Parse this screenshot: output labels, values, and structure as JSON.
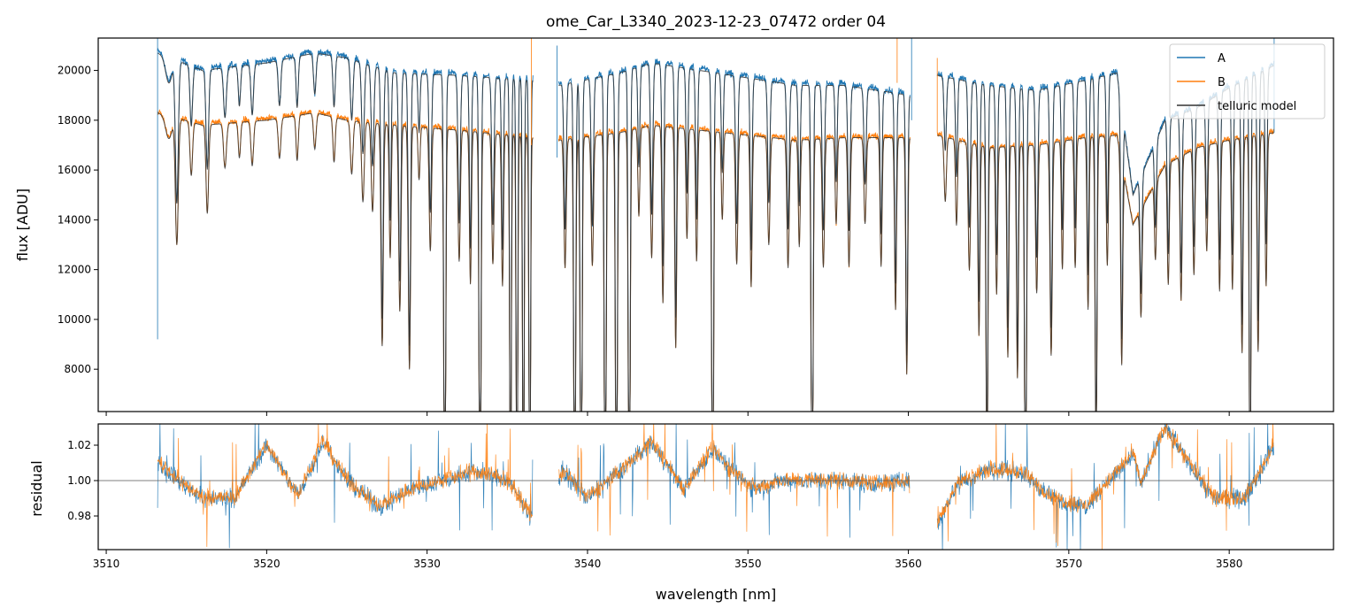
{
  "colors": {
    "A": "#1f77b4",
    "B": "#ff7f0e",
    "model": "#333333",
    "refline": "#555555"
  },
  "chart_data": [
    {
      "type": "line",
      "panel": "flux",
      "title": "ome_Car_L3340_2023-12-23_07472  order 04",
      "xlabel": "",
      "ylabel": "flux [ADU]",
      "xlim": [
        3509.5,
        3586.5
      ],
      "ylim": [
        6300,
        21300
      ],
      "xticks": [
        3510,
        3520,
        3530,
        3540,
        3550,
        3560,
        3570,
        3580
      ],
      "xtick_labels": [],
      "yticks": [
        8000,
        10000,
        12000,
        14000,
        16000,
        18000,
        20000
      ],
      "ytick_labels": [
        "8000",
        "10000",
        "12000",
        "14000",
        "16000",
        "18000",
        "20000"
      ],
      "legend": {
        "position": "top-right",
        "entries": [
          "A",
          "B",
          "telluric model"
        ]
      },
      "segments": [
        [
          3513.2,
          3536.6
        ],
        [
          3538.2,
          3560.1
        ],
        [
          3561.8,
          3582.8
        ]
      ],
      "series": [
        {
          "name": "A",
          "continuum": [
            [
              3513.2,
              20700
            ],
            [
              3516,
              20000
            ],
            [
              3520,
              20300
            ],
            [
              3523,
              20700
            ],
            [
              3525,
              20500
            ],
            [
              3528,
              19900
            ],
            [
              3532,
              19800
            ],
            [
              3536.6,
              19600
            ],
            [
              3538.2,
              19400
            ],
            [
              3542,
              19900
            ],
            [
              3544,
              20300
            ],
            [
              3547,
              20000
            ],
            [
              3550,
              19700
            ],
            [
              3553,
              19400
            ],
            [
              3556,
              19400
            ],
            [
              3560.1,
              19000
            ],
            [
              3561.8,
              19800
            ],
            [
              3565,
              19400
            ],
            [
              3568,
              19200
            ],
            [
              3571,
              19600
            ],
            [
              3573,
              19900
            ],
            [
              3574,
              15000
            ],
            [
              3576,
              18000
            ],
            [
              3578,
              18500
            ],
            [
              3580,
              19300
            ],
            [
              3582.8,
              20200
            ]
          ]
        },
        {
          "name": "B",
          "continuum": [
            [
              3513.2,
              18300
            ],
            [
              3516,
              17800
            ],
            [
              3520,
              18000
            ],
            [
              3523,
              18300
            ],
            [
              3525,
              18000
            ],
            [
              3528,
              17800
            ],
            [
              3532,
              17600
            ],
            [
              3536.6,
              17300
            ],
            [
              3538.2,
              17200
            ],
            [
              3542,
              17500
            ],
            [
              3544,
              17800
            ],
            [
              3547,
              17600
            ],
            [
              3550,
              17400
            ],
            [
              3553,
              17200
            ],
            [
              3556,
              17300
            ],
            [
              3560.1,
              17300
            ],
            [
              3561.8,
              17400
            ],
            [
              3565,
              16900
            ],
            [
              3568,
              17000
            ],
            [
              3571,
              17300
            ],
            [
              3573,
              17400
            ],
            [
              3574,
              13800
            ],
            [
              3576,
              16200
            ],
            [
              3578,
              16900
            ],
            [
              3580,
              17200
            ],
            [
              3582.8,
              17500
            ]
          ]
        },
        {
          "name": "telluric model"
        }
      ],
      "absorption_lines": [
        [
          3513.9,
          0.05,
          0.2
        ],
        [
          3514.4,
          0.28,
          0.09
        ],
        [
          3515.3,
          0.12,
          0.08
        ],
        [
          3516.3,
          0.2,
          0.08
        ],
        [
          3517.4,
          0.1,
          0.09
        ],
        [
          3518.3,
          0.08,
          0.07
        ],
        [
          3519.1,
          0.1,
          0.08
        ],
        [
          3520.8,
          0.09,
          0.08
        ],
        [
          3521.9,
          0.1,
          0.07
        ],
        [
          3523.0,
          0.08,
          0.08
        ],
        [
          3524.2,
          0.1,
          0.07
        ],
        [
          3525.3,
          0.12,
          0.08
        ],
        [
          3526.0,
          0.18,
          0.08
        ],
        [
          3526.6,
          0.2,
          0.08
        ],
        [
          3527.2,
          0.5,
          0.07
        ],
        [
          3527.7,
          0.3,
          0.06
        ],
        [
          3528.3,
          0.42,
          0.07
        ],
        [
          3528.9,
          0.55,
          0.07
        ],
        [
          3529.5,
          0.12,
          0.06
        ],
        [
          3530.2,
          0.28,
          0.07
        ],
        [
          3531.1,
          0.98,
          0.06
        ],
        [
          3532.0,
          0.3,
          0.07
        ],
        [
          3532.7,
          0.35,
          0.06
        ],
        [
          3533.3,
          0.98,
          0.06
        ],
        [
          3534.1,
          0.3,
          0.07
        ],
        [
          3534.7,
          0.35,
          0.06
        ],
        [
          3535.2,
          0.95,
          0.05
        ],
        [
          3535.6,
          0.98,
          0.05
        ],
        [
          3536.0,
          0.98,
          0.05
        ],
        [
          3536.4,
          0.98,
          0.05
        ],
        [
          3538.6,
          0.3,
          0.07
        ],
        [
          3539.2,
          0.98,
          0.06
        ],
        [
          3539.6,
          0.98,
          0.06
        ],
        [
          3540.3,
          0.3,
          0.07
        ],
        [
          3541.1,
          0.98,
          0.06
        ],
        [
          3541.8,
          0.98,
          0.06
        ],
        [
          3542.6,
          0.98,
          0.06
        ],
        [
          3543.2,
          0.2,
          0.06
        ],
        [
          3544.0,
          0.3,
          0.07
        ],
        [
          3544.7,
          0.4,
          0.06
        ],
        [
          3545.5,
          0.5,
          0.06
        ],
        [
          3546.2,
          0.25,
          0.06
        ],
        [
          3546.8,
          0.3,
          0.06
        ],
        [
          3547.8,
          0.98,
          0.06
        ],
        [
          3548.4,
          0.2,
          0.06
        ],
        [
          3549.3,
          0.3,
          0.07
        ],
        [
          3550.2,
          0.35,
          0.06
        ],
        [
          3551.3,
          0.25,
          0.07
        ],
        [
          3552.5,
          0.3,
          0.07
        ],
        [
          3553.2,
          0.25,
          0.06
        ],
        [
          3554.0,
          0.98,
          0.06
        ],
        [
          3554.7,
          0.3,
          0.07
        ],
        [
          3555.5,
          0.2,
          0.06
        ],
        [
          3556.3,
          0.3,
          0.07
        ],
        [
          3557.3,
          0.2,
          0.07
        ],
        [
          3558.3,
          0.3,
          0.06
        ],
        [
          3559.2,
          0.4,
          0.06
        ],
        [
          3559.9,
          0.55,
          0.06
        ],
        [
          3562.3,
          0.15,
          0.07
        ],
        [
          3563.0,
          0.2,
          0.06
        ],
        [
          3563.8,
          0.3,
          0.07
        ],
        [
          3564.4,
          0.45,
          0.06
        ],
        [
          3564.9,
          0.8,
          0.06
        ],
        [
          3565.5,
          0.35,
          0.06
        ],
        [
          3566.2,
          0.5,
          0.06
        ],
        [
          3566.8,
          0.55,
          0.06
        ],
        [
          3567.3,
          0.98,
          0.06
        ],
        [
          3568.0,
          0.35,
          0.07
        ],
        [
          3568.9,
          0.5,
          0.07
        ],
        [
          3569.6,
          0.3,
          0.06
        ],
        [
          3570.4,
          0.3,
          0.06
        ],
        [
          3571.2,
          0.4,
          0.06
        ],
        [
          3571.7,
          0.75,
          0.06
        ],
        [
          3572.4,
          0.3,
          0.06
        ],
        [
          3573.3,
          0.5,
          0.06
        ],
        [
          3574.5,
          0.3,
          0.06
        ],
        [
          3575.4,
          0.2,
          0.06
        ],
        [
          3576.2,
          0.3,
          0.06
        ],
        [
          3577.0,
          0.35,
          0.06
        ],
        [
          3577.8,
          0.3,
          0.06
        ],
        [
          3578.6,
          0.25,
          0.06
        ],
        [
          3579.4,
          0.35,
          0.06
        ],
        [
          3580.2,
          0.35,
          0.06
        ],
        [
          3580.8,
          0.5,
          0.06
        ],
        [
          3581.3,
          0.98,
          0.05
        ],
        [
          3581.8,
          0.5,
          0.06
        ],
        [
          3582.3,
          0.35,
          0.06
        ]
      ],
      "spikes": [
        [
          3513.2,
          21300,
          9200
        ],
        [
          3536.5,
          21300,
          17000
        ],
        [
          3538.1,
          21000,
          16500
        ],
        [
          3559.3,
          21300,
          19500
        ],
        [
          3560.2,
          21300,
          18000
        ],
        [
          3561.8,
          20500,
          17500
        ],
        [
          3582.8,
          21300,
          17500
        ]
      ]
    },
    {
      "type": "line",
      "panel": "residual",
      "title": "",
      "xlabel": "wavelength [nm]",
      "ylabel": "residual",
      "xlim": [
        3509.5,
        3586.5
      ],
      "ylim": [
        0.961,
        1.032
      ],
      "xticks": [
        3510,
        3520,
        3530,
        3540,
        3550,
        3560,
        3570,
        3580
      ],
      "xtick_labels": [
        "3510",
        "3520",
        "3530",
        "3540",
        "3550",
        "3560",
        "3570",
        "3580"
      ],
      "yticks": [
        0.98,
        1.0,
        1.02
      ],
      "ytick_labels": [
        "0.98",
        "1.00",
        "1.02"
      ],
      "reference_line": 1.0,
      "series": [
        {
          "name": "A",
          "trend": [
            [
              3513.2,
              1.011
            ],
            [
              3514.5,
              1.0
            ],
            [
              3516,
              0.99
            ],
            [
              3518,
              0.99
            ],
            [
              3520,
              1.02
            ],
            [
              3521.5,
              0.998
            ],
            [
              3522,
              0.992
            ],
            [
              3523.5,
              1.022
            ],
            [
              3525,
              1.0
            ],
            [
              3527,
              0.985
            ],
            [
              3529,
              0.995
            ],
            [
              3531,
              1.0
            ],
            [
              3533,
              1.005
            ],
            [
              3535,
              1.0
            ],
            [
              3536.5,
              0.98
            ],
            [
              3538.5,
              1.005
            ],
            [
              3540,
              0.99
            ],
            [
              3542,
              1.005
            ],
            [
              3544,
              1.022
            ],
            [
              3546,
              0.995
            ],
            [
              3547.8,
              1.018
            ],
            [
              3549,
              1.005
            ],
            [
              3550.5,
              0.995
            ],
            [
              3552,
              1.0
            ],
            [
              3554,
              1.0
            ],
            [
              3556,
              1.0
            ],
            [
              3558,
              0.998
            ],
            [
              3560,
              1.0
            ],
            [
              3561.8,
              0.975
            ],
            [
              3563,
              0.998
            ],
            [
              3565,
              1.006
            ],
            [
              3567,
              1.005
            ],
            [
              3569,
              0.99
            ],
            [
              3571,
              0.985
            ],
            [
              3572.5,
              1.0
            ],
            [
              3574,
              1.015
            ],
            [
              3574.5,
              0.998
            ],
            [
              3576,
              1.03
            ],
            [
              3577.5,
              1.01
            ],
            [
              3579,
              0.99
            ],
            [
              3581,
              0.99
            ],
            [
              3582.8,
              1.02
            ]
          ]
        },
        {
          "name": "B"
        }
      ]
    }
  ]
}
